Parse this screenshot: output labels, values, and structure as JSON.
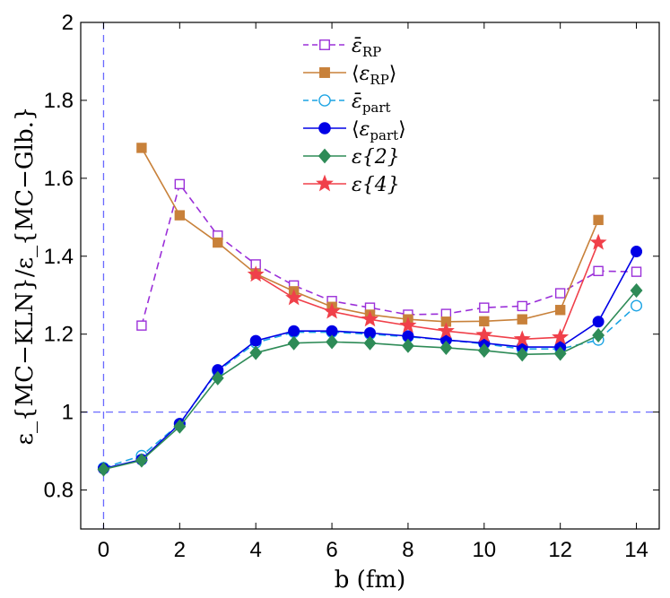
{
  "chart_data": {
    "type": "line",
    "title": "",
    "xlabel": "b (fm)",
    "ylabel": "ε_{MC−KLN}/ε_{MC−Glb.}",
    "xlim": [
      -0.6,
      14.6
    ],
    "ylim": [
      0.7,
      2.0
    ],
    "xticks": [
      0,
      2,
      4,
      6,
      8,
      10,
      12,
      14
    ],
    "yticks": [
      0.8,
      1,
      1.2,
      1.4,
      1.6,
      1.8,
      2
    ],
    "xtick_labels": [
      "0",
      "2",
      "4",
      "6",
      "8",
      "10",
      "12",
      "14"
    ],
    "ytick_labels": [
      "0.8",
      "1",
      "1.2",
      "1.4",
      "1.6",
      "1.8",
      "2"
    ],
    "reference_lines": [
      {
        "orientation": "horizontal",
        "value": 1,
        "color": "#6a6aff",
        "style": "dashed"
      },
      {
        "orientation": "vertical",
        "value": 0,
        "color": "#6a6aff",
        "style": "dashed"
      }
    ],
    "legend_position": "top-center",
    "series": [
      {
        "name": "ε̄_RP",
        "legend": {
          "sym": "ε̄",
          "sub": "RP",
          "brackets": false
        },
        "color": "#9b30d9",
        "line": "dashed",
        "marker": "square",
        "filled": false,
        "x": [
          1,
          2,
          3,
          4,
          5,
          6,
          7,
          8,
          9,
          10,
          11,
          12,
          13,
          14
        ],
        "values": [
          1.222,
          1.585,
          1.453,
          1.379,
          1.325,
          1.285,
          1.268,
          1.25,
          1.252,
          1.268,
          1.272,
          1.305,
          1.362,
          1.36
        ]
      },
      {
        "name": "⟨ε_RP⟩",
        "legend": {
          "sym": "ε",
          "sub": "RP",
          "brackets": true
        },
        "color": "#c8813a",
        "line": "solid",
        "marker": "square",
        "filled": true,
        "x": [
          1,
          2,
          3,
          4,
          5,
          6,
          7,
          8,
          9,
          10,
          11,
          12,
          13
        ],
        "values": [
          1.678,
          1.505,
          1.435,
          1.355,
          1.31,
          1.27,
          1.25,
          1.238,
          1.232,
          1.233,
          1.238,
          1.262,
          1.493
        ]
      },
      {
        "name": "ε̄_part",
        "legend": {
          "sym": "ε̄",
          "sub": "part",
          "brackets": false
        },
        "color": "#1ca4e4",
        "line": "dashed",
        "marker": "circle",
        "filled": false,
        "x": [
          0,
          1,
          2,
          3,
          4,
          5,
          6,
          7,
          8,
          9,
          10,
          11,
          12,
          13,
          14
        ],
        "values": [
          0.857,
          0.888,
          0.97,
          1.105,
          1.178,
          1.205,
          1.205,
          1.2,
          1.193,
          1.185,
          1.175,
          1.162,
          1.162,
          1.185,
          1.273
        ]
      },
      {
        "name": "⟨ε_part⟩",
        "legend": {
          "sym": "ε",
          "sub": "part",
          "brackets": true
        },
        "color": "#0000e6",
        "line": "solid",
        "marker": "circle",
        "filled": true,
        "x": [
          0,
          1,
          2,
          3,
          4,
          5,
          6,
          7,
          8,
          9,
          10,
          11,
          12,
          13,
          14
        ],
        "values": [
          0.855,
          0.878,
          0.97,
          1.108,
          1.183,
          1.208,
          1.208,
          1.203,
          1.195,
          1.185,
          1.177,
          1.167,
          1.167,
          1.232,
          1.412
        ]
      },
      {
        "name": "ε{2}",
        "legend": {
          "sym": "ε{2}",
          "sub": "",
          "brackets": false
        },
        "color": "#2e8b57",
        "line": "solid",
        "marker": "diamond",
        "filled": true,
        "x": [
          0,
          1,
          2,
          3,
          4,
          5,
          6,
          7,
          8,
          9,
          10,
          11,
          12,
          13,
          14
        ],
        "values": [
          0.853,
          0.876,
          0.963,
          1.087,
          1.152,
          1.177,
          1.18,
          1.177,
          1.17,
          1.165,
          1.158,
          1.148,
          1.15,
          1.197,
          1.312
        ]
      },
      {
        "name": "ε{4}",
        "legend": {
          "sym": "ε{4}",
          "sub": "",
          "brackets": false
        },
        "color": "#f0404a",
        "line": "solid",
        "marker": "star",
        "filled": true,
        "x": [
          4,
          5,
          6,
          7,
          8,
          9,
          10,
          11,
          12,
          13
        ],
        "values": [
          1.353,
          1.293,
          1.258,
          1.238,
          1.222,
          1.208,
          1.198,
          1.187,
          1.192,
          1.435
        ]
      }
    ]
  }
}
